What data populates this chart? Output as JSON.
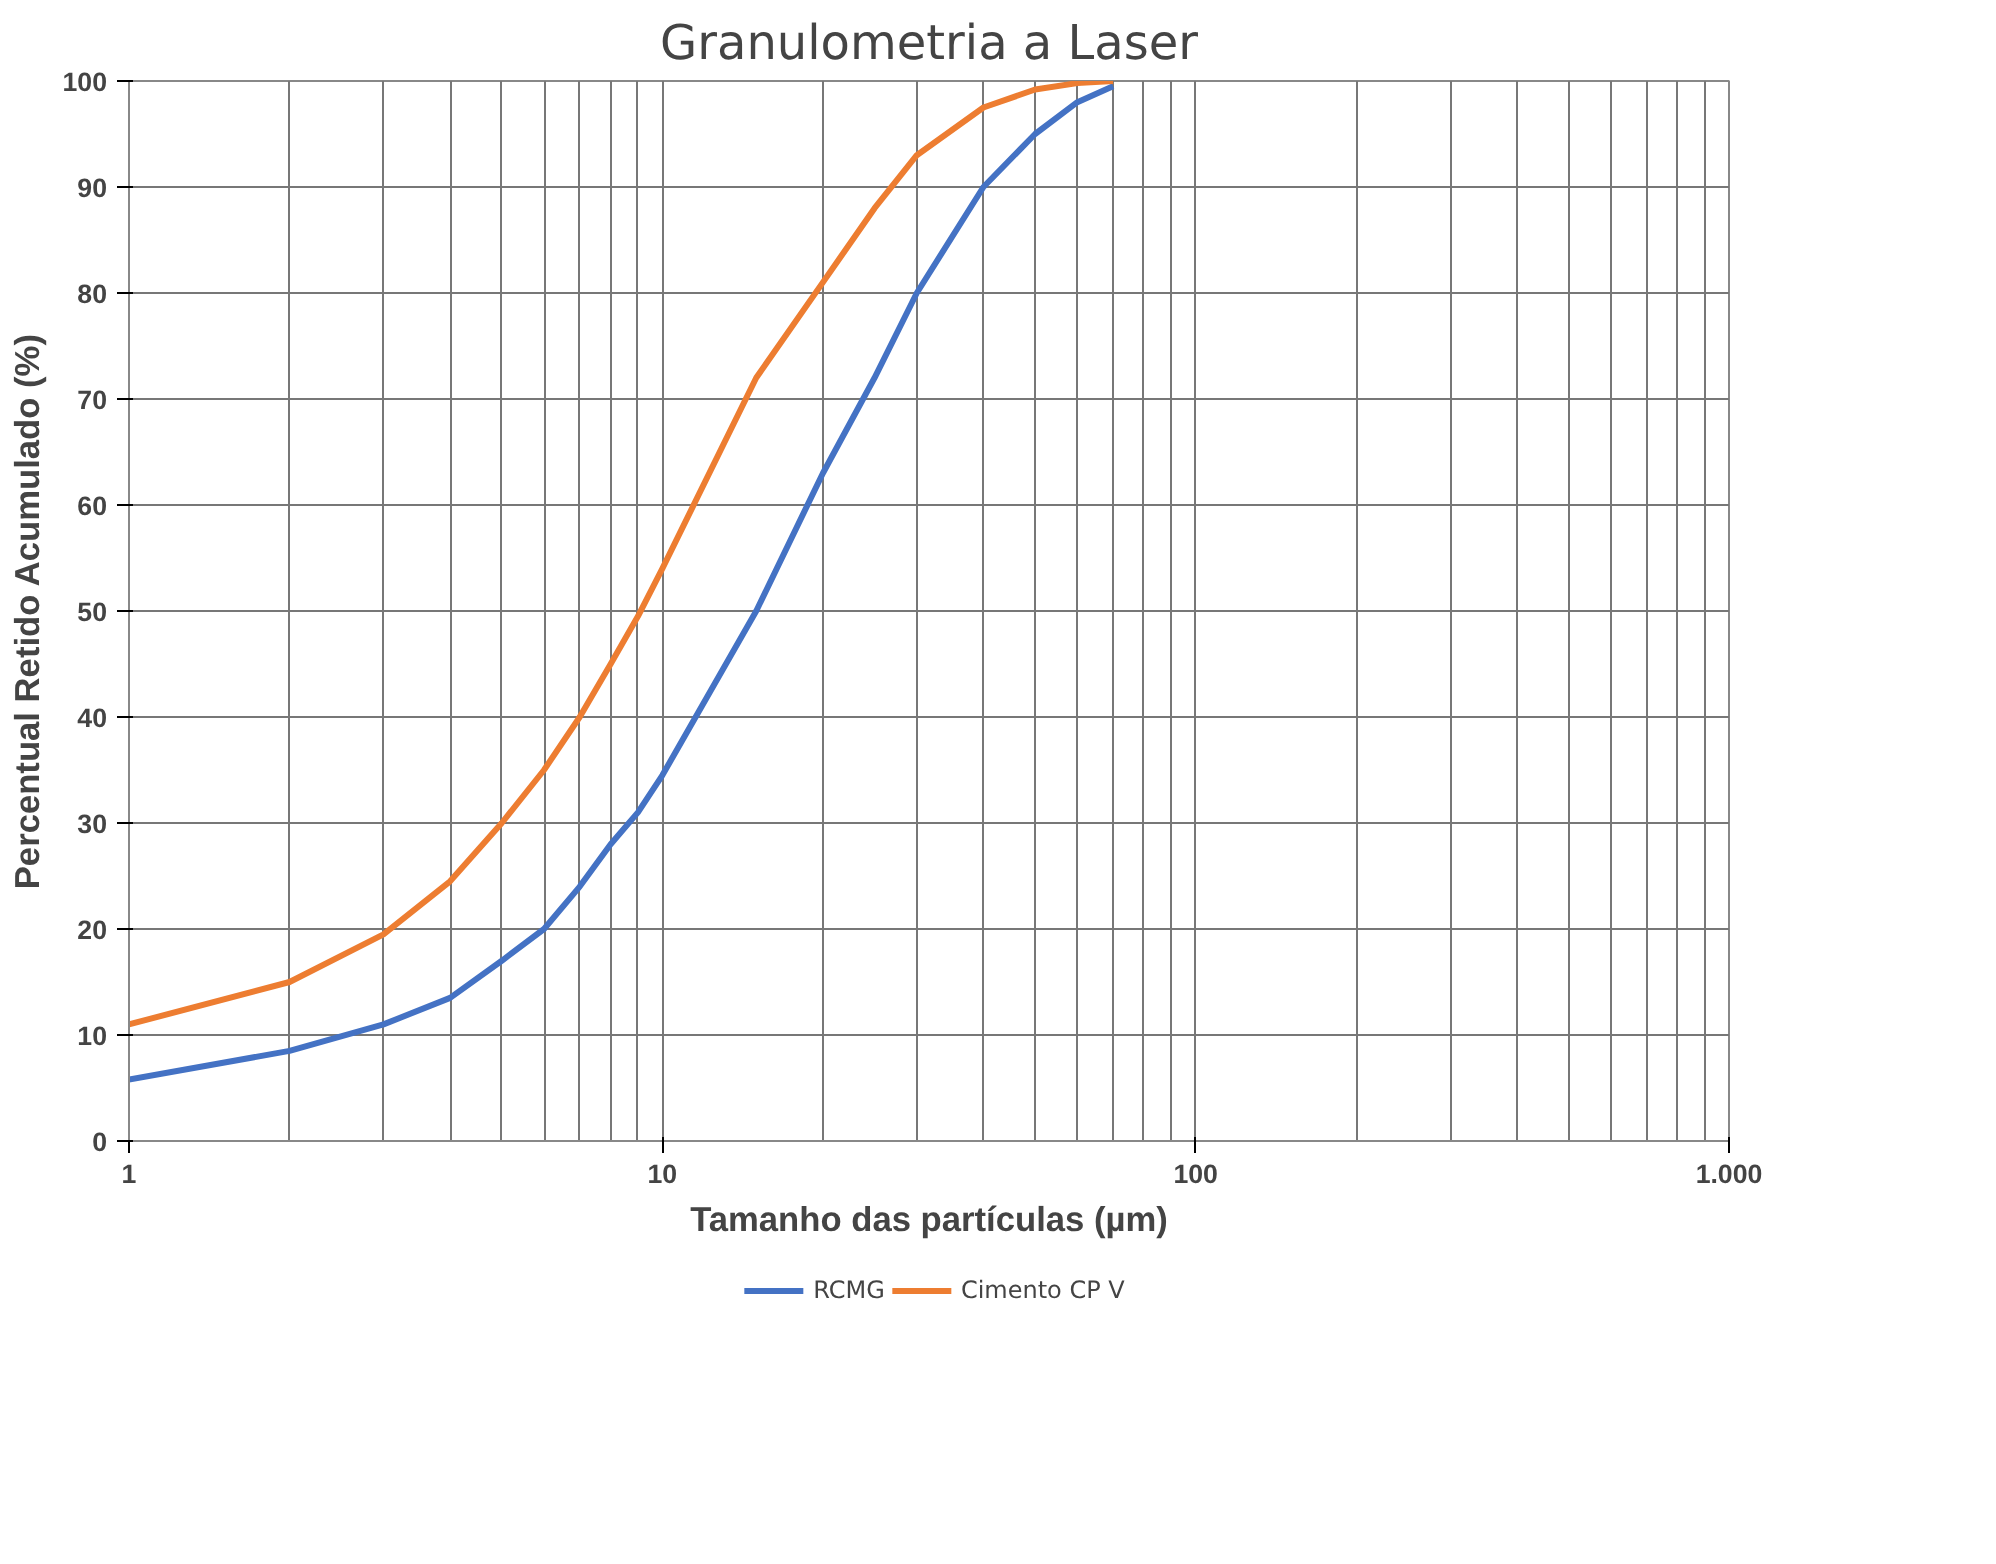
{
  "chart_data": {
    "type": "line",
    "title": "Granulometria a Laser",
    "xlabel": "Tamanho das partículas (µm)",
    "ylabel": "Percentual Retido Acumulado (%)",
    "log": "x",
    "grid": true,
    "legend": "bottom",
    "marker": "none",
    "line_style": "solid",
    "x": [
      1,
      2,
      3,
      4,
      5,
      6,
      7,
      8,
      9,
      10,
      15,
      20,
      25,
      30,
      40,
      50,
      60,
      70
    ],
    "xlim": [
      1,
      1000
    ],
    "xticks": [
      1,
      10,
      100,
      {
        "value": 1000,
        "label": "1.000"
      }
    ],
    "ylim": [
      0,
      100
    ],
    "yticks": [
      0,
      10,
      20,
      30,
      40,
      50,
      60,
      70,
      80,
      90,
      100
    ],
    "series": [
      {
        "name": "RCMG",
        "color": "#4472c4",
        "values": [
          5.8,
          8.5,
          11,
          13.5,
          17,
          20,
          24,
          28,
          31,
          34.5,
          50,
          63,
          72,
          80,
          90,
          95,
          98,
          99.5
        ]
      },
      {
        "name": "Cimento CP V",
        "color": "#ed7d31",
        "values": [
          11,
          15,
          19.5,
          24.5,
          30,
          35,
          40,
          45,
          49.5,
          54,
          72,
          81,
          88,
          93,
          97.5,
          99.2,
          99.8,
          100
        ]
      }
    ]
  }
}
